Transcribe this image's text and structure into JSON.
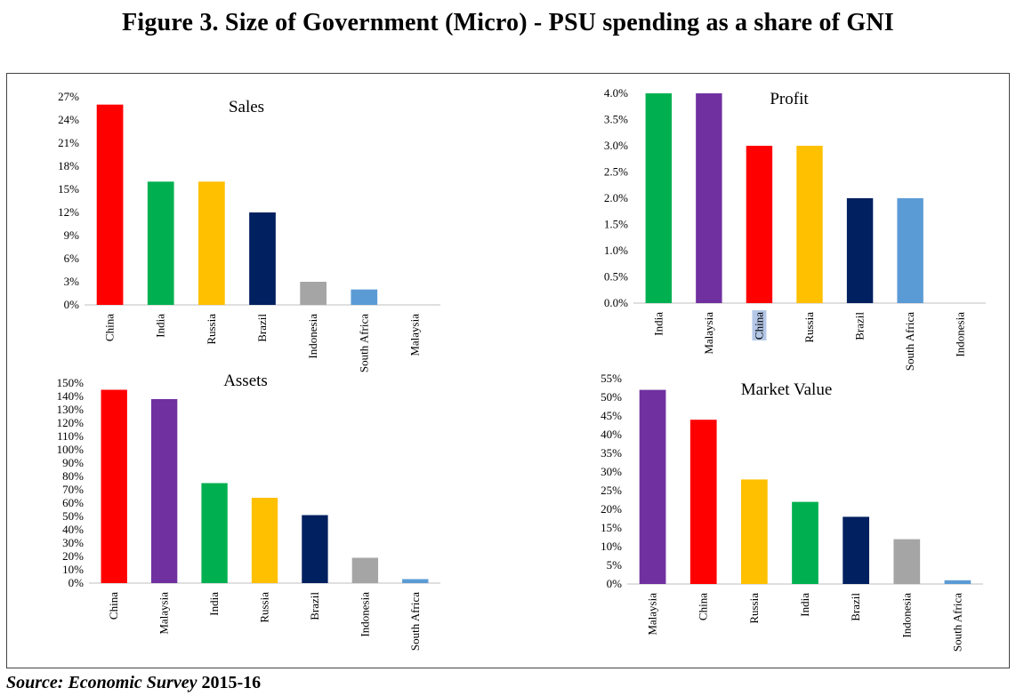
{
  "figure_title": "Figure 3. Size of Government (Micro) - PSU spending as a share of GNI",
  "source": {
    "label": "Source:",
    "name": "Economic Survey",
    "year": "2015-16"
  },
  "colors": {
    "China": "#ff0000",
    "India": "#00b050",
    "Russia": "#ffc000",
    "Brazil": "#002060",
    "Indonesia": "#a5a5a5",
    "South Africa": "#5b9bd5",
    "Malaysia": "#7030a0"
  },
  "chart_data": [
    {
      "type": "bar",
      "title": "Sales",
      "categories": [
        "China",
        "India",
        "Russia",
        "Brazil",
        "Indonesia",
        "South Africa",
        "Malaysia"
      ],
      "values": [
        26,
        16,
        16,
        12,
        3,
        2,
        0
      ],
      "ylim": [
        0,
        27
      ],
      "yticks": [
        0,
        3,
        6,
        9,
        12,
        15,
        18,
        21,
        24,
        27
      ],
      "ytick_labels": [
        "0%",
        "3%",
        "6%",
        "9%",
        "12%",
        "15%",
        "18%",
        "21%",
        "24%",
        "27%"
      ],
      "grid": false,
      "legend": "none",
      "xlabel": "",
      "ylabel": ""
    },
    {
      "type": "bar",
      "title": "Profit",
      "categories": [
        "India",
        "Malaysia",
        "China",
        "Russia",
        "Brazil",
        "South Africa",
        "Indonesia"
      ],
      "values": [
        4.0,
        4.0,
        3.0,
        3.0,
        2.0,
        2.0,
        0
      ],
      "ylim": [
        0,
        4.0
      ],
      "yticks": [
        0,
        0.5,
        1.0,
        1.5,
        2.0,
        2.5,
        3.0,
        3.5,
        4.0
      ],
      "ytick_labels": [
        "0.0%",
        "0.5%",
        "1.0%",
        "1.5%",
        "2.0%",
        "2.5%",
        "3.0%",
        "3.5%",
        "4.0%"
      ],
      "highlighted_category": "China",
      "grid": false,
      "legend": "none",
      "xlabel": "",
      "ylabel": ""
    },
    {
      "type": "bar",
      "title": "Assets",
      "categories": [
        "China",
        "Malaysia",
        "India",
        "Russia",
        "Brazil",
        "Indonesia",
        "South Africa"
      ],
      "values": [
        145,
        138,
        75,
        64,
        51,
        19,
        3
      ],
      "ylim": [
        0,
        150
      ],
      "yticks": [
        0,
        10,
        20,
        30,
        40,
        50,
        60,
        70,
        80,
        90,
        100,
        110,
        120,
        130,
        140,
        150
      ],
      "ytick_labels": [
        "0%",
        "10%",
        "20%",
        "30%",
        "40%",
        "50%",
        "60%",
        "70%",
        "80%",
        "90%",
        "100%",
        "110%",
        "120%",
        "130%",
        "140%",
        "150%"
      ],
      "grid": false,
      "legend": "none",
      "xlabel": "",
      "ylabel": ""
    },
    {
      "type": "bar",
      "title": "Market Value",
      "categories": [
        "Malaysia",
        "China",
        "Russia",
        "India",
        "Brazil",
        "Indonesia",
        "South Africa"
      ],
      "values": [
        52,
        44,
        28,
        22,
        18,
        12,
        1
      ],
      "ylim": [
        0,
        55
      ],
      "yticks": [
        0,
        5,
        10,
        15,
        20,
        25,
        30,
        35,
        40,
        45,
        50,
        55
      ],
      "ytick_labels": [
        "0%",
        "5%",
        "10%",
        "15%",
        "20%",
        "25%",
        "30%",
        "35%",
        "40%",
        "45%",
        "50%",
        "55%"
      ],
      "grid": false,
      "legend": "none",
      "xlabel": "",
      "ylabel": ""
    }
  ]
}
